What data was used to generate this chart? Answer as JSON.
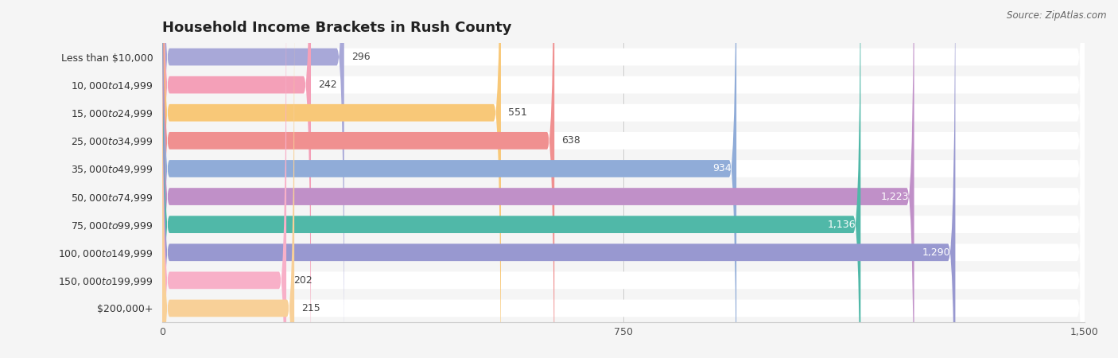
{
  "title": "Household Income Brackets in Rush County",
  "source": "Source: ZipAtlas.com",
  "categories": [
    "Less than $10,000",
    "$10,000 to $14,999",
    "$15,000 to $24,999",
    "$25,000 to $34,999",
    "$35,000 to $49,999",
    "$50,000 to $74,999",
    "$75,000 to $99,999",
    "$100,000 to $149,999",
    "$150,000 to $199,999",
    "$200,000+"
  ],
  "values": [
    296,
    242,
    551,
    638,
    934,
    1223,
    1136,
    1290,
    202,
    215
  ],
  "bar_colors": [
    "#a8a8d8",
    "#f4a0b8",
    "#f8c878",
    "#f09090",
    "#90acd8",
    "#c090c8",
    "#50b8a8",
    "#9898d0",
    "#f8b0c8",
    "#f8d098"
  ],
  "background_color": "#f5f5f5",
  "xlim": [
    0,
    1500
  ],
  "xticks": [
    0,
    750,
    1500
  ],
  "title_fontsize": 13,
  "label_fontsize": 9,
  "value_fontsize": 9,
  "value_threshold": 700
}
